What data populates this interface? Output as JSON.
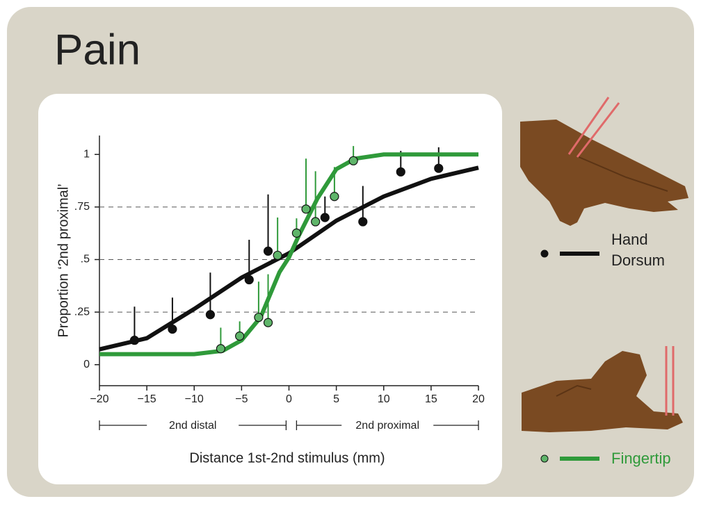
{
  "chart_data": {
    "type": "scatter",
    "title": "Pain",
    "x_label": "Distance 1st-2nd stimulus (mm)",
    "y_label": "Proportion ‘2nd proximal’",
    "xlim": [
      -20,
      20
    ],
    "ylim": [
      -0.1,
      1.09
    ],
    "xticks": [
      {
        "value": -20,
        "label": "−20"
      },
      {
        "value": -15,
        "label": "−15"
      },
      {
        "value": -10,
        "label": "−10"
      },
      {
        "value": -5,
        "label": "−5"
      },
      0,
      5,
      10,
      15,
      20
    ],
    "yticks": [
      0,
      {
        "value": 0.25,
        "label": ".25"
      },
      {
        "value": 0.5,
        "label": ".5"
      },
      {
        "value": 0.75,
        "label": ".75"
      },
      1
    ],
    "hlines": [
      0.25,
      0.5,
      0.75
    ],
    "ranges": [
      {
        "label": "2nd distal",
        "from": -20,
        "to": -0.3
      },
      {
        "label": "2nd proximal",
        "from": 0.8,
        "to": 20
      }
    ],
    "series": [
      {
        "name": "Hand Dorsum",
        "color": "#111111",
        "x": [
          -16.3,
          -12.3,
          -8.3,
          -4.2,
          -2.2,
          3.8,
          7.8,
          11.8,
          15.8
        ],
        "values": [
          0.116,
          0.169,
          0.238,
          0.404,
          0.54,
          0.7,
          0.68,
          0.917,
          0.934
        ],
        "errors": [
          0.16,
          0.15,
          0.2,
          0.19,
          0.27,
          0.1,
          0.17,
          0.1,
          0.1
        ],
        "fit_x": [
          -20,
          -15,
          -10,
          -5,
          0,
          5,
          10,
          15,
          20
        ],
        "fit_values": [
          0.073,
          0.126,
          0.265,
          0.414,
          0.53,
          0.685,
          0.8,
          0.884,
          0.937
        ]
      },
      {
        "name": "Fingertip",
        "color": "#2f9a3a",
        "x": [
          -7.2,
          -5.2,
          -3.2,
          -2.2,
          -1.2,
          0.8,
          1.8,
          2.8,
          4.8,
          6.8
        ],
        "values": [
          0.076,
          0.136,
          0.225,
          0.2,
          0.52,
          0.626,
          0.74,
          0.68,
          0.8,
          0.97
        ],
        "errors": [
          0.1,
          0.07,
          0.17,
          0.23,
          0.18,
          0.07,
          0.24,
          0.24,
          0.14,
          0.07
        ],
        "fit_x": [
          -20,
          -10,
          -7,
          -5,
          -3,
          -1,
          0,
          1,
          3,
          5,
          7,
          10,
          20
        ],
        "fit_values": [
          0.05,
          0.05,
          0.066,
          0.116,
          0.225,
          0.44,
          0.51,
          0.61,
          0.79,
          0.93,
          0.98,
          1.0,
          1.0
        ]
      }
    ]
  }
}
